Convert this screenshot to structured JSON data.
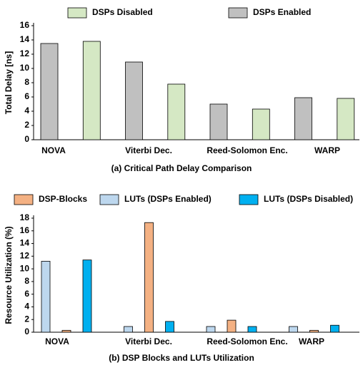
{
  "chart_data": [
    {
      "type": "bar",
      "title": "(a) Critical Path Delay Comparison",
      "y_label": "Total Delay [ns]",
      "categories": [
        "NOVA",
        "Viterbi Dec.",
        "Reed-Solomon Enc.",
        "WARP"
      ],
      "series": [
        {
          "name": "DSPs Enabled",
          "color": "#c0c0c0",
          "values": [
            13.5,
            10.9,
            5.0,
            5.9
          ]
        },
        {
          "name": "DSPs Disabled",
          "color": "#d5e8c4",
          "values": [
            13.8,
            7.8,
            4.3,
            5.8
          ]
        }
      ],
      "ylim": [
        0,
        16
      ],
      "yticks": [
        0,
        2,
        4,
        6,
        8,
        10,
        12,
        14,
        16
      ],
      "legend": "top"
    },
    {
      "type": "bar",
      "title": "(b) DSP Blocks and LUTs Utilization",
      "y_label": "Resource Utilization (%)",
      "categories": [
        "NOVA",
        "Viterbi Dec.",
        "Reed-Solomon Enc.",
        "WARP"
      ],
      "series": [
        {
          "name": "LUTs (DSPs Enabled)",
          "color": "#bdd7ee",
          "values": [
            11.2,
            0.9,
            0.9,
            0.9
          ]
        },
        {
          "name": "DSP-Blocks",
          "color": "#f4b183",
          "values": [
            0.3,
            17.3,
            1.9,
            0.3
          ]
        },
        {
          "name": "LUTs (DSPs Disabled)",
          "color": "#00b0f0",
          "values": [
            11.4,
            1.7,
            0.9,
            1.1
          ]
        }
      ],
      "ylim": [
        0,
        18
      ],
      "yticks": [
        0,
        2,
        4,
        6,
        8,
        10,
        12,
        14,
        16,
        18
      ],
      "legend": "top"
    }
  ]
}
